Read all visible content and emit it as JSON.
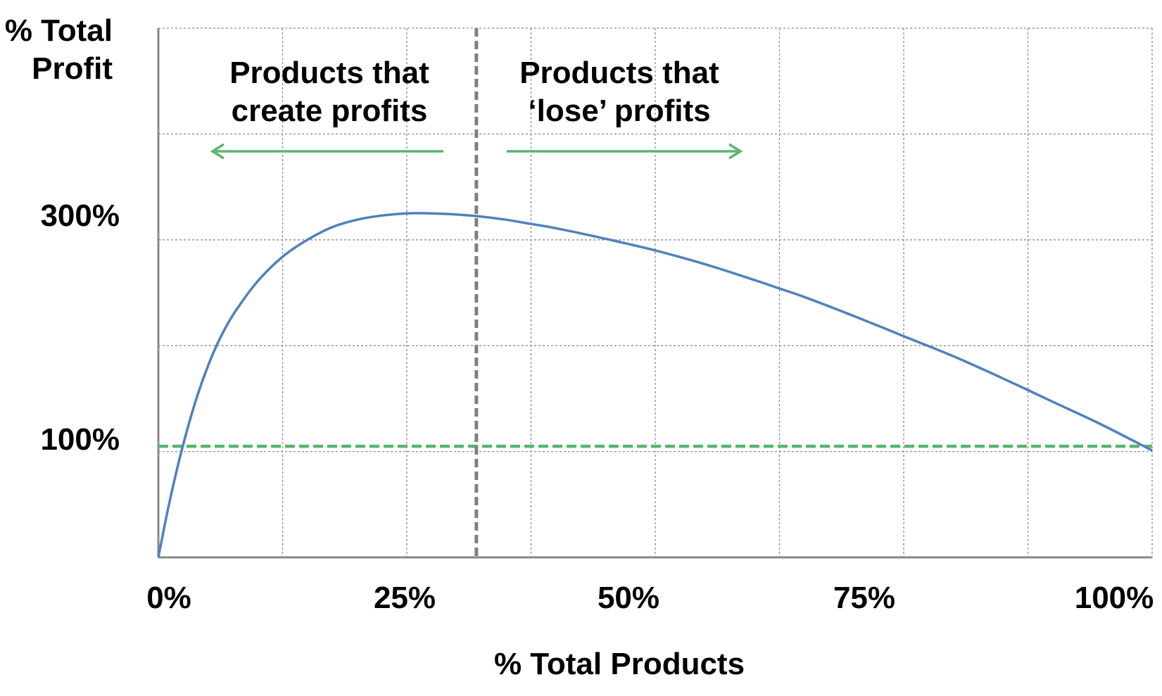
{
  "chart_data": {
    "type": "line",
    "title": "",
    "xlabel": "% Total Products",
    "ylabel": [
      "% Total",
      "Profit"
    ],
    "x_ticks": [
      "0%",
      "25%",
      "50%",
      "75%",
      "100%"
    ],
    "y_ticks": [
      {
        "value": 100,
        "label": "100%"
      },
      {
        "value": 300,
        "label": "300%"
      }
    ],
    "xlim": [
      0,
      100
    ],
    "ylim": [
      -25,
      475
    ],
    "grid": true,
    "series": [
      {
        "color": "#4f81bd",
        "x": [
          0,
          1,
          2,
          3,
          4,
          5,
          6,
          7,
          8,
          10,
          12.5,
          15,
          17.5,
          20,
          22.5,
          25,
          27.5,
          30,
          32.5,
          35,
          37.5,
          40,
          45,
          50,
          55,
          60,
          62.5,
          65,
          70,
          75,
          80,
          85,
          90,
          95,
          100
        ],
        "y": [
          -25,
          22,
          63,
          99,
          130,
          156,
          178,
          196,
          211,
          236,
          259,
          275,
          287,
          294,
          298,
          300,
          300,
          299,
          297,
          294,
          290,
          286,
          276,
          265,
          252,
          237,
          229,
          221,
          203,
          184,
          165,
          144,
          122,
          100,
          76
        ]
      }
    ],
    "reference_lines": [
      {
        "orientation": "horizontal",
        "y": 80,
        "color": "#59b56e",
        "style": "dashed"
      },
      {
        "orientation": "vertical",
        "x": 32,
        "color": "#7f7f7f",
        "style": "dashed"
      }
    ],
    "annotations": {
      "left_text": [
        "Products that",
        "create profits"
      ],
      "right_text": [
        "Products that",
        "‘lose’ profits"
      ],
      "arrow_color": "#59b56e"
    }
  }
}
